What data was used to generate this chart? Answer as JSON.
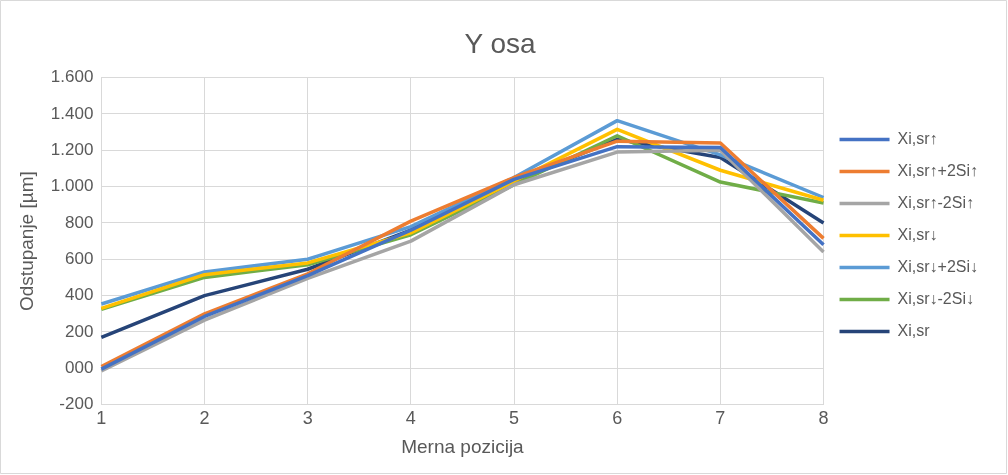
{
  "chart_data": {
    "type": "line",
    "title": "Y osa",
    "xlabel": "Merna pozicija",
    "ylabel": "Odstupanje [µm]",
    "categories": [
      "1",
      "2",
      "3",
      "4",
      "5",
      "6",
      "7",
      "8"
    ],
    "ylim": [
      -200,
      1600
    ],
    "yticks": [
      -200,
      {
        "value": 0,
        "label": "000"
      },
      200,
      400,
      600,
      800,
      {
        "value": 1000,
        "label": "1.000"
      },
      {
        "value": 1200,
        "label": "1.200"
      },
      {
        "value": 1400,
        "label": "1.400"
      },
      {
        "value": 1600,
        "label": "1.600"
      }
    ],
    "grid": true,
    "legend": "right",
    "marker": "none",
    "line_style": "solid",
    "series": [
      {
        "name": "Xi,sr↑",
        "color": "#4472c4",
        "values": [
          -5,
          285,
          510,
          760,
          1040,
          1220,
          1215,
          680
        ]
      },
      {
        "name": "Xi,sr↑+2Si↑",
        "color": "#ed7d31",
        "values": [
          10,
          300,
          520,
          810,
          1050,
          1250,
          1240,
          715
        ]
      },
      {
        "name": "Xi,sr↑-2Si↑",
        "color": "#a5a5a5",
        "values": [
          -15,
          265,
          495,
          700,
          1010,
          1190,
          1200,
          640
        ]
      },
      {
        "name": "Xi,sr↓",
        "color": "#ffc000",
        "values": [
          330,
          515,
          580,
          745,
          1030,
          1315,
          1090,
          925
        ]
      },
      {
        "name": "Xi,sr↓+2Si↓",
        "color": "#5b9bd5",
        "values": [
          354,
          530,
          600,
          780,
          1050,
          1363,
          1175,
          940
        ]
      },
      {
        "name": "Xi,sr↓-2Si↓",
        "color": "#70ad47",
        "values": [
          325,
          500,
          570,
          735,
          1010,
          1280,
          1025,
          910
        ]
      },
      {
        "name": "Xi,sr",
        "color": "#264478",
        "values": [
          170,
          400,
          545,
          760,
          1030,
          1260,
          1160,
          800
        ]
      }
    ]
  }
}
